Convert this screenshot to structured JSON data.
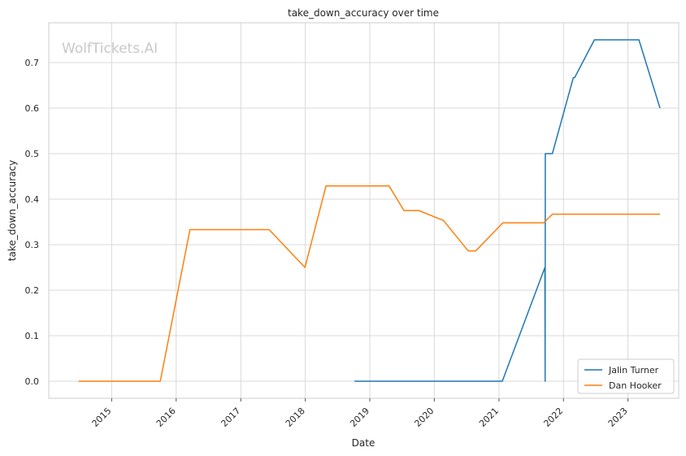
{
  "chart_data": {
    "type": "line",
    "title": "take_down_accuracy over time",
    "xlabel": "Date",
    "ylabel": "take_down_accuracy",
    "watermark": "WolfTickets.AI",
    "x_type": "date",
    "xlim": [
      "2014-01-10",
      "2023-10-15"
    ],
    "ylim": [
      -0.0375,
      0.7875
    ],
    "x_ticks": [
      "2015",
      "2016",
      "2017",
      "2018",
      "2019",
      "2020",
      "2021",
      "2022",
      "2023"
    ],
    "y_ticks": [
      "0.0",
      "0.1",
      "0.2",
      "0.3",
      "0.4",
      "0.5",
      "0.6",
      "0.7"
    ],
    "grid": true,
    "legend_position": "lower-right",
    "series": [
      {
        "name": "Jalin Turner",
        "color": "#1f77b4",
        "points": [
          [
            "2018-10-06",
            0.0
          ],
          [
            "2021-01-20",
            0.0
          ],
          [
            "2021-09-18",
            0.25
          ],
          [
            "2021-09-19",
            0.0
          ],
          [
            "2021-09-20",
            0.5
          ],
          [
            "2021-10-30",
            0.5
          ],
          [
            "2022-02-26",
            0.667
          ],
          [
            "2022-03-05",
            0.667
          ],
          [
            "2022-06-25",
            0.75
          ],
          [
            "2023-03-04",
            0.75
          ],
          [
            "2023-07-01",
            0.6
          ]
        ]
      },
      {
        "name": "Dan Hooker",
        "color": "#ff7f0e",
        "points": [
          [
            "2014-06-28",
            0.0
          ],
          [
            "2015-10-03",
            0.0
          ],
          [
            "2016-03-19",
            0.333
          ],
          [
            "2017-06-10",
            0.333
          ],
          [
            "2017-12-30",
            0.25
          ],
          [
            "2018-04-28",
            0.429
          ],
          [
            "2019-04-20",
            0.429
          ],
          [
            "2019-07-13",
            0.375
          ],
          [
            "2019-10-05",
            0.375
          ],
          [
            "2020-02-22",
            0.353
          ],
          [
            "2020-07-11",
            0.286
          ],
          [
            "2020-08-22",
            0.286
          ],
          [
            "2021-01-23",
            0.348
          ],
          [
            "2021-09-11",
            0.348
          ],
          [
            "2021-10-30",
            0.367
          ],
          [
            "2023-07-01",
            0.367
          ]
        ]
      }
    ]
  }
}
